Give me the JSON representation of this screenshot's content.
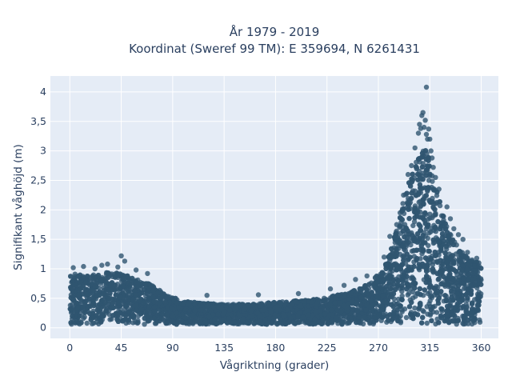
{
  "chart_data": {
    "type": "scatter",
    "title_line1": "År 1979 - 2019",
    "title_line2": "Koordinat (Sweref 99 TM): E 359694, N 6261431",
    "xlabel": "Vågriktning (grader)",
    "ylabel": "Signifikant våghöjd (m)",
    "xlim": [
      -17,
      375
    ],
    "ylim": [
      -0.18,
      4.27
    ],
    "x_ticks": [
      0,
      45,
      90,
      135,
      180,
      225,
      270,
      315,
      360
    ],
    "x_tick_labels": [
      "0",
      "45",
      "90",
      "135",
      "180",
      "225",
      "270",
      "315",
      "360"
    ],
    "y_ticks": [
      0,
      0.5,
      1,
      1.5,
      2,
      2.5,
      3,
      3.5,
      4
    ],
    "y_tick_labels": [
      "0",
      "0,5",
      "1",
      "1,5",
      "2",
      "2,5",
      "3",
      "3,5",
      "4"
    ],
    "grid": true,
    "marker_color": "#2f5570",
    "background_color": "#e5ecf6",
    "upper_envelope": [
      [
        0,
        0.95
      ],
      [
        10,
        0.9
      ],
      [
        25,
        0.92
      ],
      [
        40,
        0.95
      ],
      [
        55,
        0.85
      ],
      [
        70,
        0.75
      ],
      [
        85,
        0.55
      ],
      [
        100,
        0.45
      ],
      [
        130,
        0.4
      ],
      [
        160,
        0.4
      ],
      [
        190,
        0.45
      ],
      [
        220,
        0.5
      ],
      [
        245,
        0.6
      ],
      [
        262,
        0.75
      ],
      [
        275,
        1.0
      ],
      [
        285,
        1.6
      ],
      [
        295,
        2.4
      ],
      [
        305,
        2.95
      ],
      [
        312,
        3.05
      ],
      [
        320,
        2.4
      ],
      [
        330,
        1.7
      ],
      [
        340,
        1.35
      ],
      [
        350,
        1.15
      ],
      [
        360,
        1.1
      ]
    ],
    "outlier_points": [
      [
        3,
        1.02
      ],
      [
        12,
        1.04
      ],
      [
        22,
        1.0
      ],
      [
        28,
        1.06
      ],
      [
        33,
        1.08
      ],
      [
        42,
        1.03
      ],
      [
        45,
        1.22
      ],
      [
        48,
        1.13
      ],
      [
        58,
        0.98
      ],
      [
        68,
        0.92
      ],
      [
        120,
        0.55
      ],
      [
        165,
        0.56
      ],
      [
        200,
        0.58
      ],
      [
        228,
        0.66
      ],
      [
        240,
        0.72
      ],
      [
        250,
        0.82
      ],
      [
        260,
        0.88
      ],
      [
        275,
        1.2
      ],
      [
        280,
        1.55
      ],
      [
        286,
        1.75
      ],
      [
        289,
        1.95
      ],
      [
        292,
        2.25
      ],
      [
        296,
        2.6
      ],
      [
        299,
        2.75
      ],
      [
        302,
        3.05
      ],
      [
        305,
        3.3
      ],
      [
        306,
        3.45
      ],
      [
        307,
        3.38
      ],
      [
        308,
        3.6
      ],
      [
        309,
        3.65
      ],
      [
        310,
        3.4
      ],
      [
        311,
        3.52
      ],
      [
        312,
        3.28
      ],
      [
        313,
        3.2
      ],
      [
        314,
        3.37
      ],
      [
        315,
        3.2
      ],
      [
        316,
        3.0
      ],
      [
        317,
        2.88
      ],
      [
        318,
        2.72
      ],
      [
        320,
        2.55
      ],
      [
        323,
        2.35
      ],
      [
        330,
        2.05
      ],
      [
        333,
        1.85
      ],
      [
        336,
        1.68
      ],
      [
        340,
        1.58
      ],
      [
        344,
        1.5
      ],
      [
        348,
        1.28
      ],
      [
        352,
        1.15
      ],
      [
        356,
        1.18
      ],
      [
        358,
        1.05
      ],
      [
        312,
        4.08
      ]
    ]
  }
}
